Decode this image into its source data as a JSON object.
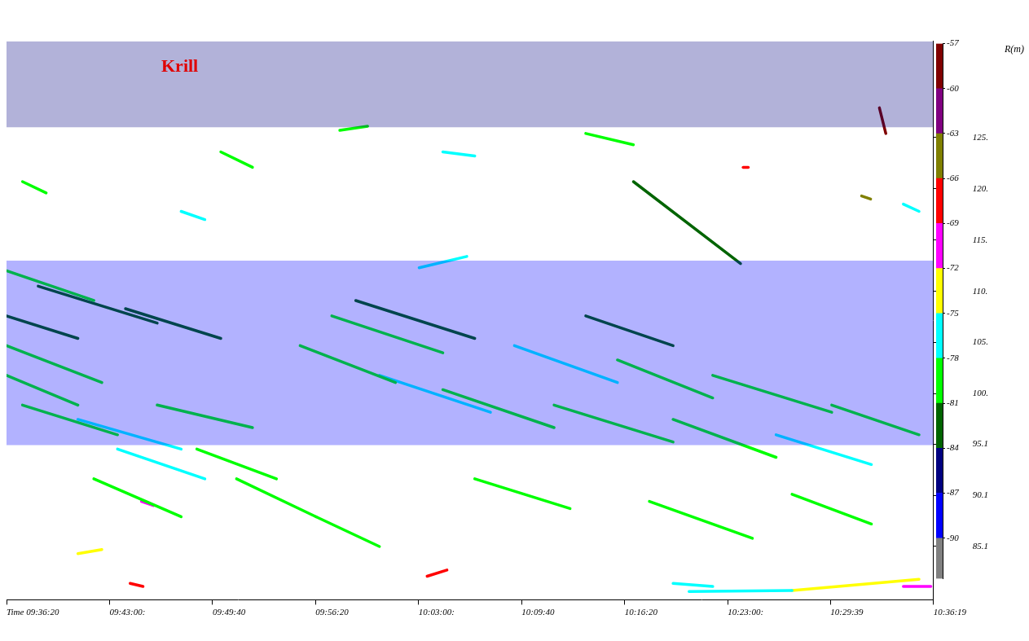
{
  "chart_data": {
    "type": "scatter",
    "title": "Krill",
    "ylabel": "R(m)",
    "xlim": [
      34580,
      38179
    ],
    "xticks": [
      {
        "value": 34580,
        "label": "Time 09:36:20"
      },
      {
        "value": 34980,
        "label": "09:43:00:"
      },
      {
        "value": 35380,
        "label": "09:49:40"
      },
      {
        "value": 35780,
        "label": "09:56:20"
      },
      {
        "value": 36180,
        "label": "10:03:00:"
      },
      {
        "value": 36580,
        "label": "10:09:40"
      },
      {
        "value": 36980,
        "label": "10:16:20"
      },
      {
        "value": 37380,
        "label": "10:23:00:"
      },
      {
        "value": 37779,
        "label": "10:29:39"
      },
      {
        "value": 38179,
        "label": "10:36:19"
      }
    ],
    "ylim": [
      79.9,
      134.4
    ],
    "yticks": [
      85.1,
      90.1,
      95.1,
      {
        "value": 100,
        "label": "100."
      },
      {
        "value": 105,
        "label": "105."
      },
      {
        "value": 110,
        "label": "110."
      },
      {
        "value": 115,
        "label": "115."
      },
      {
        "value": 120,
        "label": "120."
      },
      {
        "value": 125,
        "label": "125."
      }
    ],
    "grid": false,
    "colorbar": {
      "range": [
        -92.7,
        -57
      ],
      "ticks": [
        -57,
        -60,
        -63,
        -66,
        -69,
        -72,
        -75,
        -78,
        -81,
        -84,
        -87,
        -90
      ],
      "colors": [
        "#808080",
        "#0000ff",
        "#000080",
        "#006400",
        "#00ff00",
        "#00ffff",
        "#ffff00",
        "#ff00ff",
        "#ff0000",
        "#808000",
        "#800080",
        "#800000"
      ]
    },
    "layers": [
      {
        "range": [
          126,
          134.4
        ],
        "sv": -87
      },
      {
        "range": [
          95,
          113
        ],
        "sv": -88
      }
    ],
    "tracks": [
      {
        "x": [
          34580,
          34919
        ],
        "y": [
          112.0,
          109.1
        ],
        "sv": -81
      },
      {
        "x": [
          34703,
          35165
        ],
        "y": [
          110.5,
          106.9
        ],
        "sv": -83
      },
      {
        "x": [
          35042,
          35412
        ],
        "y": [
          108.3,
          105.4
        ],
        "sv": -82
      },
      {
        "x": [
          34580,
          34950
        ],
        "y": [
          104.7,
          101.1
        ],
        "sv": -79
      },
      {
        "x": [
          34580,
          34857
        ],
        "y": [
          101.8,
          98.9
        ],
        "sv": -80
      },
      {
        "x": [
          34642,
          35011
        ],
        "y": [
          98.9,
          96.0
        ],
        "sv": -79
      },
      {
        "x": [
          34857,
          35258
        ],
        "y": [
          97.5,
          94.6
        ],
        "sv": -78
      },
      {
        "x": [
          35165,
          35535
        ],
        "y": [
          98.9,
          96.7
        ],
        "sv": -80
      },
      {
        "x": [
          35319,
          35628
        ],
        "y": [
          94.6,
          91.7
        ],
        "sv": -79
      },
      {
        "x": [
          34919,
          35258
        ],
        "y": [
          91.7,
          88.0
        ],
        "sv": -80
      },
      {
        "x": [
          35720,
          36090
        ],
        "y": [
          104.7,
          101.1
        ],
        "sv": -79
      },
      {
        "x": [
          35843,
          36274
        ],
        "y": [
          107.6,
          104.0
        ],
        "sv": -81
      },
      {
        "x": [
          36028,
          36459
        ],
        "y": [
          101.8,
          98.2
        ],
        "sv": -78
      },
      {
        "x": [
          36274,
          36706
        ],
        "y": [
          100.4,
          96.7
        ],
        "sv": -79
      },
      {
        "x": [
          36552,
          36952
        ],
        "y": [
          104.7,
          101.1
        ],
        "sv": -78
      },
      {
        "x": [
          36706,
          37168
        ],
        "y": [
          98.9,
          95.3
        ],
        "sv": -79
      },
      {
        "x": [
          36952,
          37322
        ],
        "y": [
          103.3,
          99.6
        ],
        "sv": -80
      },
      {
        "x": [
          37168,
          37568
        ],
        "y": [
          97.5,
          93.8
        ],
        "sv": -79
      },
      {
        "x": [
          37322,
          37784
        ],
        "y": [
          101.8,
          98.2
        ],
        "sv": -81
      },
      {
        "x": [
          37568,
          37938
        ],
        "y": [
          96.0,
          93.1
        ],
        "sv": -78
      },
      {
        "x": [
          37784,
          38123
        ],
        "y": [
          98.9,
          96.0
        ],
        "sv": -80
      },
      {
        "x": [
          35936,
          36398
        ],
        "y": [
          109.1,
          105.4
        ],
        "sv": -82
      },
      {
        "x": [
          35473,
          35782
        ],
        "y": [
          91.7,
          88.0
        ],
        "sv": -79
      },
      {
        "x": [
          36398,
          36768
        ],
        "y": [
          91.7,
          88.8
        ],
        "sv": -80
      },
      {
        "x": [
          37076,
          37476
        ],
        "y": [
          89.5,
          85.9
        ],
        "sv": -79
      },
      {
        "x": [
          37630,
          37938
        ],
        "y": [
          90.2,
          87.3
        ],
        "sv": -80
      },
      {
        "x": [
          35782,
          36028
        ],
        "y": [
          88.0,
          85.1
        ],
        "sv": -79
      },
      {
        "x": [
          35011,
          35350
        ],
        "y": [
          94.6,
          91.7
        ],
        "sv": -78
      },
      {
        "x": [
          34580,
          34857
        ],
        "y": [
          107.6,
          105.4
        ],
        "sv": -82
      },
      {
        "x": [
          36829,
          37168
        ],
        "y": [
          107.6,
          104.7
        ],
        "sv": -82
      },
      {
        "x": [
          37014,
          37430
        ],
        "y": [
          120.7,
          112.7
        ],
        "sv": -83
      },
      {
        "x": [
          36182,
          36367
        ],
        "y": [
          112.3,
          113.4
        ],
        "sv": -76
      },
      {
        "x": [
          36274,
          36398
        ],
        "y": [
          123.6,
          123.2
        ],
        "sv": -78
      },
      {
        "x": [
          34642,
          34734
        ],
        "y": [
          120.7,
          119.6
        ],
        "sv": -79
      },
      {
        "x": [
          35258,
          35350
        ],
        "y": [
          117.8,
          117.0
        ],
        "sv": -76
      },
      {
        "x": [
          35874,
          35982
        ],
        "y": [
          125.7,
          126.1
        ],
        "sv": -79
      },
      {
        "x": [
          36829,
          37014
        ],
        "y": [
          125.4,
          124.3
        ],
        "sv": -80
      },
      {
        "x": [
          38062,
          38123
        ],
        "y": [
          118.5,
          117.8
        ],
        "sv": -78
      },
      {
        "x": [
          35412,
          35535
        ],
        "y": [
          123.6,
          122.1
        ],
        "sv": -80
      },
      {
        "x": [
          37900,
          37935
        ],
        "y": [
          119.3,
          119.0
        ],
        "sv": -66
      },
      {
        "x": [
          37969,
          37994
        ],
        "y": [
          127.9,
          125.4
        ],
        "sv": -58
      },
      {
        "x": [
          37440,
          37460
        ],
        "y": [
          122.1,
          122.1
        ],
        "sv": -67
      },
      {
        "x": [
          37230,
          37630
        ],
        "y": [
          80.7,
          80.8
        ],
        "sv": -76
      },
      {
        "x": [
          37630,
          38123
        ],
        "y": [
          80.8,
          81.9
        ],
        "sv": -73
      },
      {
        "x": [
          38062,
          38169
        ],
        "y": [
          81.2,
          81.2
        ],
        "sv": -70
      },
      {
        "x": [
          36213,
          36290
        ],
        "y": [
          82.2,
          82.8
        ],
        "sv": -67
      },
      {
        "x": [
          35060,
          35110
        ],
        "y": [
          81.5,
          81.2
        ],
        "sv": -67
      },
      {
        "x": [
          35104,
          35150
        ],
        "y": [
          89.5,
          89.1
        ],
        "sv": -70
      },
      {
        "x": [
          34857,
          34950
        ],
        "y": [
          84.4,
          84.8
        ],
        "sv": -74
      },
      {
        "x": [
          37168,
          37322
        ],
        "y": [
          81.5,
          81.2
        ],
        "sv": -77
      }
    ]
  }
}
